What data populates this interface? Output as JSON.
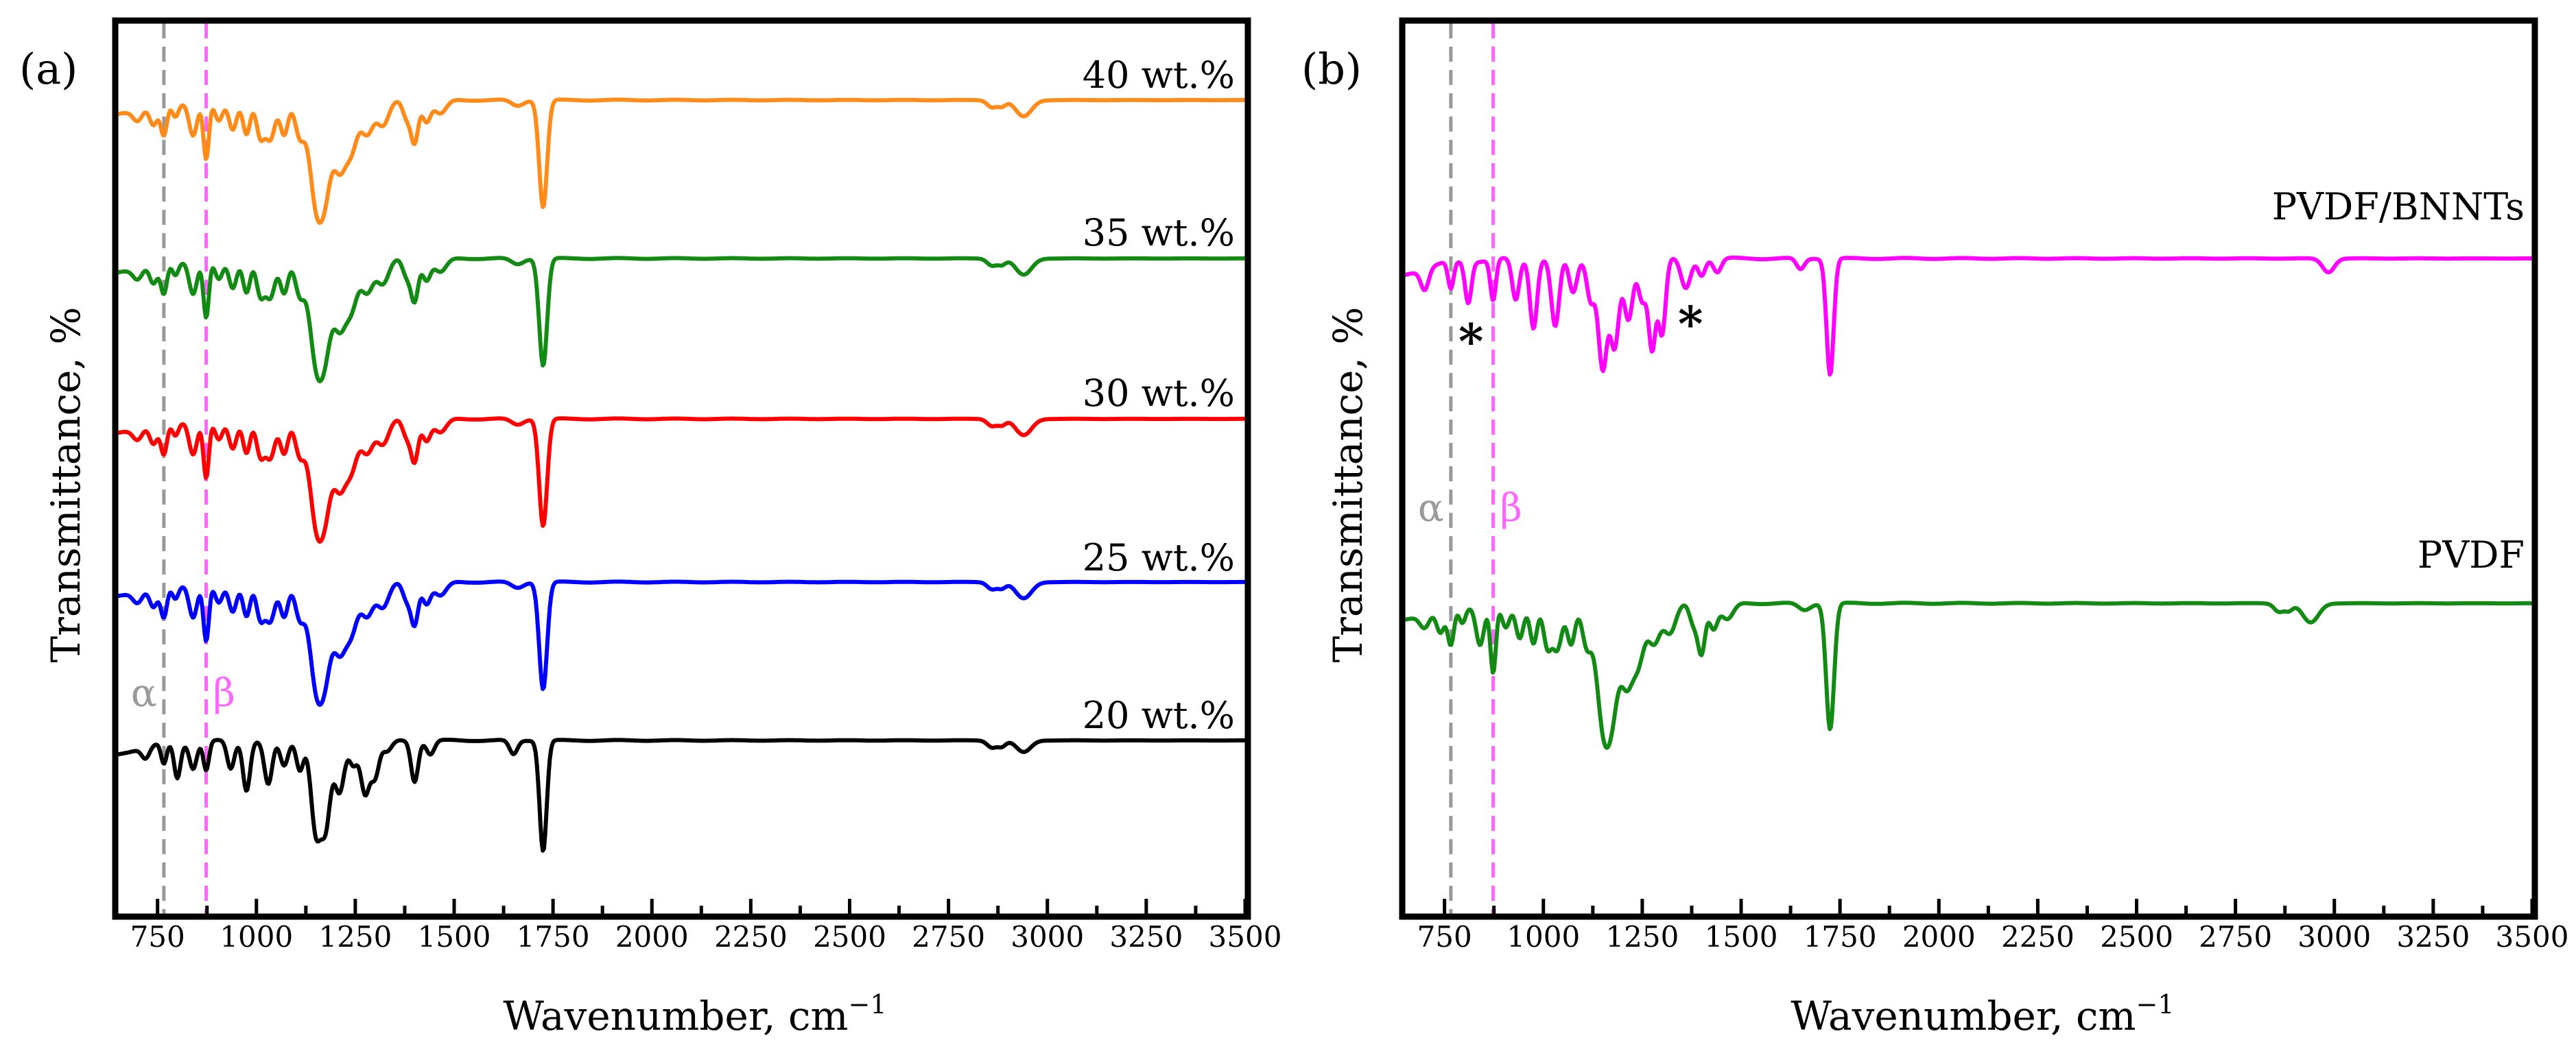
{
  "chart_data": [
    {
      "type": "line",
      "panel_label": "(a)",
      "xlabel": "Wavenumber, cm",
      "xlabel_sup": "−1",
      "ylabel": "Transmittance, %",
      "xlim": [
        650,
        3500
      ],
      "x_ticks": [
        750,
        1000,
        1250,
        1500,
        1750,
        2000,
        2250,
        2500,
        2750,
        3000,
        3250,
        3500
      ],
      "x_tick_labels": [
        "750",
        "1000",
        "1250",
        "1500",
        "1750",
        "2000",
        "2250",
        "2500",
        "2750",
        "3000",
        "3250",
        "3500"
      ],
      "y_ticks_shown": false,
      "reference_lines": [
        {
          "name": "alpha",
          "label": "α",
          "x": 766,
          "color": "#9a9a9a"
        },
        {
          "name": "beta",
          "label": "β",
          "x": 873,
          "color": "#ff66ff"
        }
      ],
      "series": [
        {
          "name": "40 wt.%",
          "label": "40 wt.%",
          "color": "#ff8c1a",
          "offset": 4,
          "profile": "pvdf"
        },
        {
          "name": "35 wt.%",
          "label": "35 wt.%",
          "color": "#138a13",
          "offset": 3,
          "profile": "pvdf"
        },
        {
          "name": "30 wt.%",
          "label": "30 wt.%",
          "color": "#ff0000",
          "offset": 2,
          "profile": "pvdf"
        },
        {
          "name": "25 wt.%",
          "label": "25 wt.%",
          "color": "#0000ff",
          "offset": 1,
          "profile": "pvdf"
        },
        {
          "name": "20 wt.%",
          "label": "20 wt.%",
          "color": "#000000",
          "offset": 0,
          "profile": "black"
        }
      ]
    },
    {
      "type": "line",
      "panel_label": "(b)",
      "xlabel": "Wavenumber, cm",
      "xlabel_sup": "−1",
      "ylabel": "Transmittance, %",
      "xlim": [
        650,
        3500
      ],
      "x_ticks": [
        750,
        1000,
        1250,
        1500,
        1750,
        2000,
        2250,
        2500,
        2750,
        3000,
        3250,
        3500
      ],
      "x_tick_labels": [
        "750",
        "1000",
        "1250",
        "1500",
        "1750",
        "2000",
        "2250",
        "2500",
        "2750",
        "3000",
        "3250",
        "3500"
      ],
      "y_ticks_shown": false,
      "reference_lines": [
        {
          "name": "alpha",
          "label": "α",
          "x": 766,
          "color": "#9a9a9a"
        },
        {
          "name": "beta",
          "label": "β",
          "x": 873,
          "color": "#ff66ff"
        }
      ],
      "annotations": [
        {
          "name": "asterisk-1",
          "text": "*",
          "x": 810
        },
        {
          "name": "asterisk-2",
          "text": "*",
          "x": 1365
        }
      ],
      "series": [
        {
          "name": "PVDF/BNNTs",
          "label": "PVDF/BNNTs",
          "color": "#ff00ff",
          "offset": 1,
          "profile": "bnnt"
        },
        {
          "name": "PVDF",
          "label": "PVDF",
          "color": "#138a13",
          "offset": 0,
          "profile": "pvdf"
        }
      ]
    }
  ]
}
